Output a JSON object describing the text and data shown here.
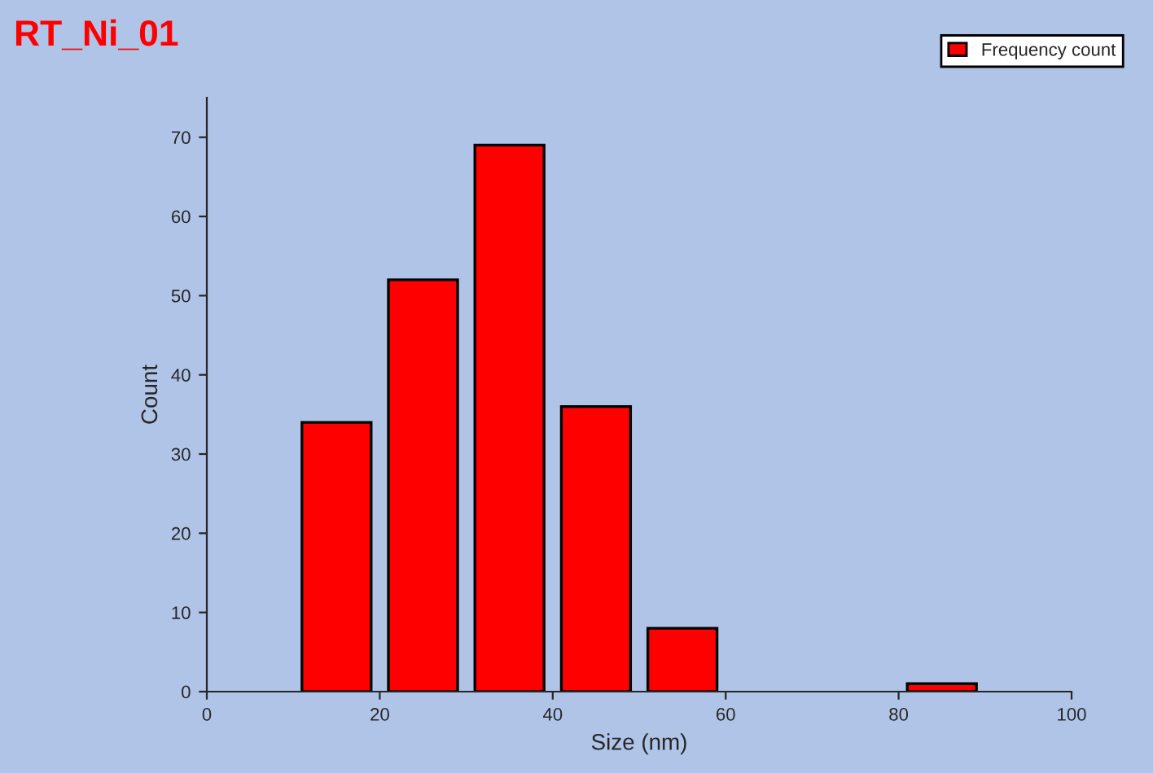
{
  "chart_data": {
    "type": "histogram",
    "title": "RT_Ni_01",
    "xlabel": "Size (nm)",
    "ylabel": "Count",
    "bins": [
      10,
      20,
      30,
      40,
      50,
      60,
      70,
      80,
      90
    ],
    "series": [
      {
        "name": "Frequency count",
        "color": "#ff0000",
        "values": [
          34,
          52,
          69,
          36,
          8,
          0,
          0,
          1
        ]
      }
    ],
    "xlim": [
      0,
      100
    ],
    "xticks": [
      0,
      20,
      40,
      60,
      80,
      100
    ],
    "ylim": [
      0,
      75
    ],
    "yticks": [
      0,
      10,
      20,
      30,
      40,
      50,
      60,
      70
    ],
    "grid": false,
    "legend": "top right"
  }
}
